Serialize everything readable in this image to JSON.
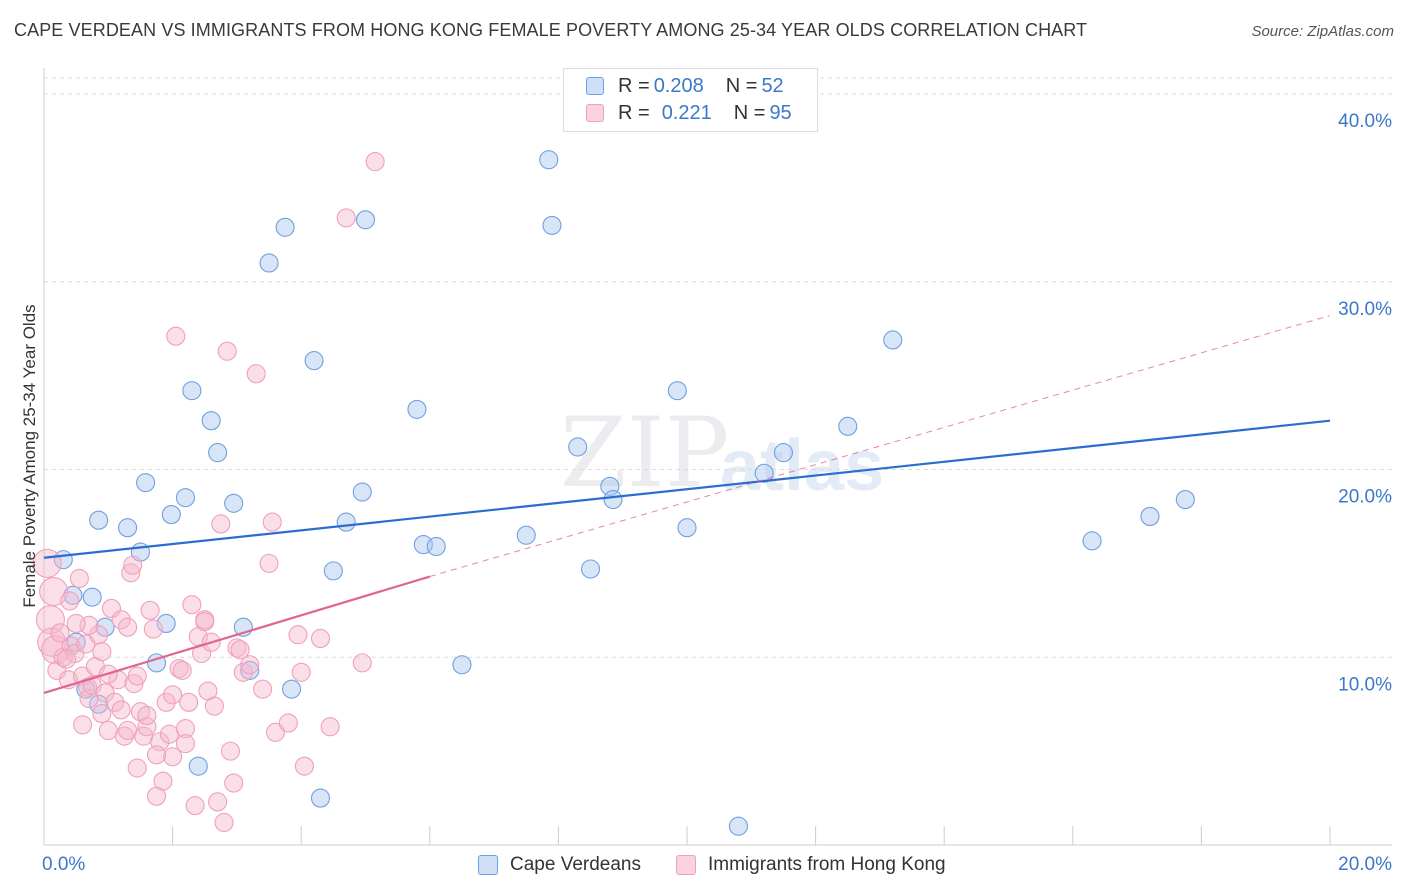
{
  "title": "CAPE VERDEAN VS IMMIGRANTS FROM HONG KONG FEMALE POVERTY AMONG 25-34 YEAR OLDS CORRELATION CHART",
  "source": "Source: ZipAtlas.com",
  "watermark": {
    "zip": "ZIP",
    "atlas": "atlas"
  },
  "legend_top": {
    "rows": [
      {
        "r_label": "R = ",
        "r_value": "0.208",
        "n_label": "N = ",
        "n_value": "52",
        "color": "#a9c6ee"
      },
      {
        "r_label": "R = ",
        "r_value": "0.221",
        "n_label": "N = ",
        "n_value": "95",
        "color": "#f5b8cb"
      }
    ]
  },
  "chart_data": {
    "type": "scatter",
    "title": "CAPE VERDEAN VS IMMIGRANTS FROM HONG KONG FEMALE POVERTY AMONG 25-34 YEAR OLDS CORRELATION CHART",
    "xlabel": "",
    "ylabel": "Female Poverty Among 25-34 Year Olds",
    "xlim": [
      0,
      20
    ],
    "ylim": [
      0,
      40
    ],
    "x_tick_labels": [
      "0.0%",
      "20.0%"
    ],
    "y_ticks": [
      10,
      20,
      30,
      40
    ],
    "y_tick_labels": [
      "10.0%",
      "20.0%",
      "30.0%",
      "40.0%"
    ],
    "grid": true,
    "legend": "bottom-center",
    "series": [
      {
        "name": "Cape Verdeans",
        "color": "#6fa0e0",
        "fill": "#a9c6ee",
        "trend": {
          "x": [
            0,
            20
          ],
          "y": [
            15.3,
            22.6
          ],
          "style": "solid",
          "color": "#2a6dd1"
        },
        "points": [
          [
            0.3,
            15.2
          ],
          [
            0.45,
            13.3
          ],
          [
            0.75,
            13.2
          ],
          [
            0.5,
            10.8
          ],
          [
            0.65,
            8.3
          ],
          [
            0.85,
            7.5
          ],
          [
            0.95,
            11.6
          ],
          [
            0.85,
            17.3
          ],
          [
            1.3,
            16.9
          ],
          [
            1.5,
            15.6
          ],
          [
            1.58,
            19.3
          ],
          [
            1.75,
            9.7
          ],
          [
            1.9,
            11.8
          ],
          [
            1.98,
            17.6
          ],
          [
            2.2,
            18.5
          ],
          [
            2.3,
            24.2
          ],
          [
            2.4,
            4.2
          ],
          [
            2.6,
            22.6
          ],
          [
            2.7,
            20.9
          ],
          [
            2.95,
            18.2
          ],
          [
            3.1,
            11.6
          ],
          [
            3.2,
            9.3
          ],
          [
            3.5,
            31.0
          ],
          [
            3.75,
            32.9
          ],
          [
            3.85,
            8.3
          ],
          [
            4.2,
            25.8
          ],
          [
            4.3,
            2.5
          ],
          [
            4.5,
            14.6
          ],
          [
            4.7,
            17.2
          ],
          [
            4.95,
            18.8
          ],
          [
            5.0,
            33.3
          ],
          [
            5.8,
            23.2
          ],
          [
            5.9,
            16.0
          ],
          [
            6.1,
            15.9
          ],
          [
            6.5,
            9.6
          ],
          [
            7.5,
            16.5
          ],
          [
            7.85,
            36.5
          ],
          [
            7.9,
            33.0
          ],
          [
            8.3,
            21.2
          ],
          [
            8.5,
            14.7
          ],
          [
            8.8,
            19.1
          ],
          [
            8.85,
            18.4
          ],
          [
            9.85,
            24.2
          ],
          [
            10.0,
            16.9
          ],
          [
            10.8,
            1.0
          ],
          [
            11.2,
            19.8
          ],
          [
            11.5,
            20.9
          ],
          [
            12.5,
            22.3
          ],
          [
            13.2,
            26.9
          ],
          [
            16.3,
            16.2
          ],
          [
            17.2,
            17.5
          ],
          [
            17.75,
            18.4
          ]
        ]
      },
      {
        "name": "Immigrants from Hong Kong",
        "color": "#f0a0ba",
        "fill": "#f5b8cb",
        "trend": {
          "x": [
            0,
            6
          ],
          "y": [
            8.1,
            14.3
          ],
          "style": "solid",
          "color": "#e0668f",
          "extension": {
            "x": [
              6,
              20
            ],
            "y": [
              14.3,
              28.2
            ],
            "style": "dashed"
          }
        },
        "points": [
          [
            0.05,
            15.0
          ],
          [
            0.1,
            12.0
          ],
          [
            0.12,
            10.8
          ],
          [
            0.18,
            10.4
          ],
          [
            0.2,
            9.3
          ],
          [
            0.3,
            10.0
          ],
          [
            0.38,
            8.8
          ],
          [
            0.42,
            10.6
          ],
          [
            0.48,
            10.2
          ],
          [
            0.55,
            14.2
          ],
          [
            0.6,
            9.0
          ],
          [
            0.65,
            10.7
          ],
          [
            0.68,
            8.4
          ],
          [
            0.7,
            7.8
          ],
          [
            0.75,
            8.5
          ],
          [
            0.8,
            9.5
          ],
          [
            0.85,
            11.2
          ],
          [
            0.9,
            7.0
          ],
          [
            0.95,
            8.1
          ],
          [
            1.0,
            6.1
          ],
          [
            1.05,
            12.6
          ],
          [
            1.1,
            7.6
          ],
          [
            1.15,
            8.8
          ],
          [
            1.2,
            12.0
          ],
          [
            1.25,
            5.8
          ],
          [
            1.3,
            6.1
          ],
          [
            1.35,
            14.5
          ],
          [
            1.38,
            14.9
          ],
          [
            1.4,
            8.6
          ],
          [
            1.45,
            4.1
          ],
          [
            1.5,
            7.1
          ],
          [
            1.55,
            5.8
          ],
          [
            1.6,
            6.3
          ],
          [
            1.65,
            12.5
          ],
          [
            1.7,
            11.5
          ],
          [
            1.75,
            2.6
          ],
          [
            1.8,
            5.5
          ],
          [
            1.85,
            3.4
          ],
          [
            1.9,
            7.6
          ],
          [
            1.95,
            5.9
          ],
          [
            2.0,
            4.7
          ],
          [
            2.05,
            27.1
          ],
          [
            2.1,
            9.4
          ],
          [
            2.15,
            9.3
          ],
          [
            2.2,
            6.2
          ],
          [
            2.25,
            7.6
          ],
          [
            2.3,
            12.8
          ],
          [
            2.35,
            2.1
          ],
          [
            2.4,
            11.1
          ],
          [
            2.45,
            10.2
          ],
          [
            2.5,
            12.0
          ],
          [
            2.55,
            8.2
          ],
          [
            2.6,
            10.8
          ],
          [
            2.65,
            7.4
          ],
          [
            2.7,
            2.3
          ],
          [
            2.75,
            17.1
          ],
          [
            2.8,
            1.2
          ],
          [
            2.85,
            26.3
          ],
          [
            2.9,
            5.0
          ],
          [
            2.95,
            3.3
          ],
          [
            3.0,
            10.5
          ],
          [
            3.05,
            10.4
          ],
          [
            3.1,
            9.2
          ],
          [
            3.2,
            9.6
          ],
          [
            3.3,
            25.1
          ],
          [
            3.4,
            8.3
          ],
          [
            3.5,
            15.0
          ],
          [
            3.55,
            17.2
          ],
          [
            3.6,
            6.0
          ],
          [
            3.8,
            6.5
          ],
          [
            3.95,
            11.2
          ],
          [
            4.0,
            9.2
          ],
          [
            4.05,
            4.2
          ],
          [
            4.3,
            11.0
          ],
          [
            4.45,
            6.3
          ],
          [
            4.7,
            33.4
          ],
          [
            4.95,
            9.7
          ],
          [
            5.15,
            36.4
          ],
          [
            0.15,
            13.5
          ],
          [
            0.25,
            11.3
          ],
          [
            0.35,
            9.9
          ],
          [
            0.6,
            6.4
          ],
          [
            0.7,
            11.7
          ],
          [
            1.2,
            7.2
          ],
          [
            1.0,
            9.1
          ],
          [
            1.45,
            9.0
          ],
          [
            2.0,
            8.0
          ],
          [
            2.2,
            5.4
          ],
          [
            0.9,
            10.3
          ],
          [
            1.6,
            6.9
          ],
          [
            0.5,
            11.8
          ],
          [
            1.3,
            11.6
          ],
          [
            2.5,
            11.9
          ],
          [
            1.75,
            4.8
          ],
          [
            0.4,
            13.0
          ]
        ]
      }
    ]
  },
  "legend_bottom": [
    {
      "label": "Cape Verdeans",
      "color": "#a9c6ee"
    },
    {
      "label": "Immigrants from Hong Kong",
      "color": "#f5b8cb"
    }
  ]
}
